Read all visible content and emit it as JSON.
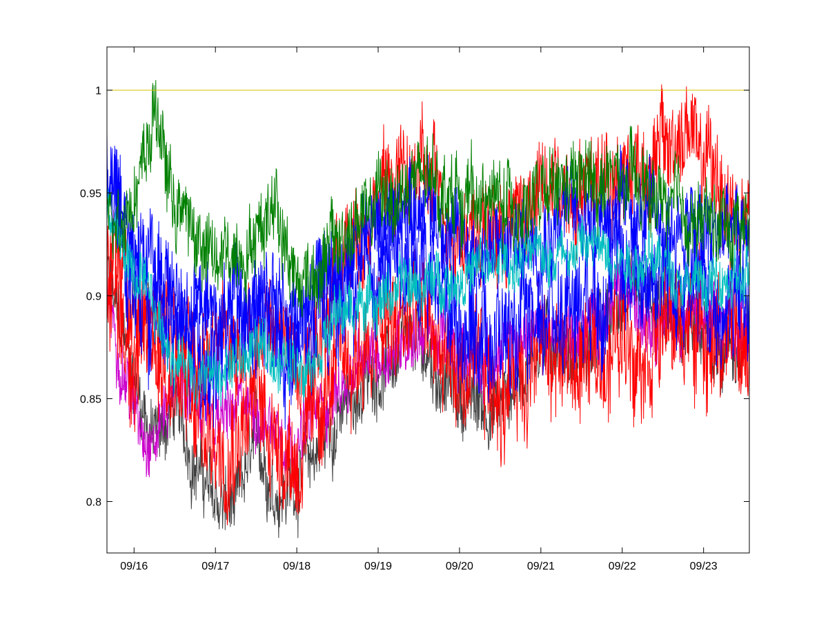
{
  "chart_data": {
    "type": "line",
    "title": "",
    "xlabel": "",
    "ylabel": "",
    "x_tick_labels": [
      "09/16",
      "09/17",
      "09/18",
      "09/19",
      "09/20",
      "09/21",
      "09/22",
      "09/23"
    ],
    "y_tick_labels": [
      "0.8",
      "0.85",
      "0.9",
      "0.95",
      "1"
    ],
    "y_ticks": [
      0.8,
      0.85,
      0.9,
      0.95,
      1.0
    ],
    "xlim": [
      "09/15 16:00",
      "09/23 13:30"
    ],
    "ylim": [
      0.775,
      1.021
    ],
    "grid": false,
    "legend": false,
    "reference_line": {
      "y": 1.0,
      "color": "#d4c200"
    },
    "axis_color": "#000000",
    "note": "dense noisy time series; values below are approximate envelope points read from the figure",
    "series": [
      {
        "color": "#404040",
        "x": [
          "09/15 16:00",
          "09/16 00:00",
          "09/16 06:00",
          "09/16 12:00",
          "09/16 18:00",
          "09/17 00:00",
          "09/17 06:00",
          "09/17 12:00",
          "09/17 18:00",
          "09/18 00:00",
          "09/18 12:00",
          "09/19 00:00",
          "09/19 12:00",
          "09/20 00:00",
          "09/20 12:00",
          "09/21 00:00",
          "09/21 12:00",
          "09/22 00:00",
          "09/22 12:00",
          "09/23 00:00",
          "09/23 13:30"
        ],
        "y": [
          0.91,
          0.86,
          0.83,
          0.845,
          0.82,
          0.8,
          0.795,
          0.83,
          0.805,
          0.81,
          0.84,
          0.865,
          0.875,
          0.85,
          0.845,
          0.88,
          0.87,
          0.895,
          0.89,
          0.875,
          0.875
        ],
        "amp": 0.018
      },
      {
        "color": "#cc00cc",
        "x": [
          "09/15 16:00",
          "09/16 00:00",
          "09/16 06:00",
          "09/16 12:00",
          "09/17 00:00",
          "09/17 12:00",
          "09/18 00:00",
          "09/18 12:00",
          "09/19 00:00",
          "09/19 12:00",
          "09/20 00:00",
          "09/20 12:00",
          "09/21 00:00",
          "09/21 12:00",
          "09/22 00:00",
          "09/22 12:00",
          "09/23 00:00",
          "09/23 13:30"
        ],
        "y": [
          0.9,
          0.845,
          0.83,
          0.86,
          0.84,
          0.845,
          0.83,
          0.855,
          0.87,
          0.885,
          0.87,
          0.87,
          0.885,
          0.88,
          0.9,
          0.89,
          0.885,
          0.885
        ],
        "amp": 0.016
      },
      {
        "color": "#ff0000",
        "x": [
          "09/15 16:00",
          "09/16 00:00",
          "09/16 06:00",
          "09/16 12:00",
          "09/16 18:00",
          "09/17 00:00",
          "09/17 12:00",
          "09/17 18:00",
          "09/18 00:00",
          "09/18 12:00",
          "09/19 00:00",
          "09/19 12:00",
          "09/20 00:00",
          "09/20 12:00",
          "09/21 00:00",
          "09/21 12:00",
          "09/22 00:00",
          "09/22 12:00",
          "09/23 00:00",
          "09/23 13:30"
        ],
        "y": [
          0.91,
          0.87,
          0.88,
          0.86,
          0.84,
          0.83,
          0.85,
          0.835,
          0.82,
          0.865,
          0.88,
          0.89,
          0.86,
          0.855,
          0.875,
          0.865,
          0.88,
          0.885,
          0.885,
          0.87
        ],
        "amp": 0.03
      },
      {
        "color": "#ff0000",
        "x": [
          "09/15 16:00",
          "09/16 00:00",
          "09/16 12:00",
          "09/17 00:00",
          "09/17 12:00",
          "09/18 00:00",
          "09/18 12:00",
          "09/19 00:00",
          "09/19 12:00",
          "09/20 00:00",
          "09/20 12:00",
          "09/21 00:00",
          "09/21 12:00",
          "09/21 20:00",
          "09/22 00:00",
          "09/22 12:00",
          "09/22 20:00",
          "09/23 00:00",
          "09/23 13:30"
        ],
        "y": [
          0.93,
          0.9,
          0.88,
          0.87,
          0.89,
          0.87,
          0.91,
          0.95,
          0.96,
          0.935,
          0.93,
          0.95,
          0.955,
          0.965,
          0.96,
          0.97,
          0.98,
          0.965,
          0.93
        ],
        "amp": 0.025
      },
      {
        "color": "#0000ff",
        "x": [
          "09/15 16:00",
          "09/16 00:00",
          "09/16 12:00",
          "09/17 00:00",
          "09/17 12:00",
          "09/18 00:00",
          "09/18 12:00",
          "09/19 00:00",
          "09/19 12:00",
          "09/20 00:00",
          "09/20 12:00",
          "09/21 00:00",
          "09/21 12:00",
          "09/22 00:00",
          "09/22 12:00",
          "09/23 00:00",
          "09/23 13:30"
        ],
        "y": [
          0.95,
          0.91,
          0.885,
          0.87,
          0.885,
          0.87,
          0.895,
          0.915,
          0.92,
          0.89,
          0.88,
          0.89,
          0.905,
          0.915,
          0.91,
          0.9,
          0.895
        ],
        "amp": 0.03
      },
      {
        "color": "#0000ff",
        "x": [
          "09/15 16:00",
          "09/16 00:00",
          "09/16 12:00",
          "09/17 00:00",
          "09/17 12:00",
          "09/18 00:00",
          "09/18 12:00",
          "09/19 00:00",
          "09/19 12:00",
          "09/20 00:00",
          "09/20 12:00",
          "09/21 00:00",
          "09/21 12:00",
          "09/22 00:00",
          "09/22 12:00",
          "09/23 00:00",
          "09/23 13:30"
        ],
        "y": [
          0.96,
          0.93,
          0.9,
          0.89,
          0.9,
          0.895,
          0.915,
          0.935,
          0.95,
          0.925,
          0.92,
          0.935,
          0.945,
          0.94,
          0.935,
          0.93,
          0.93
        ],
        "amp": 0.022
      },
      {
        "color": "#00bfbf",
        "x": [
          "09/15 16:00",
          "09/16 00:00",
          "09/16 12:00",
          "09/17 00:00",
          "09/17 12:00",
          "09/18 00:00",
          "09/18 12:00",
          "09/19 00:00",
          "09/19 12:00",
          "09/20 00:00",
          "09/20 12:00",
          "09/21 00:00",
          "09/21 12:00",
          "09/22 00:00",
          "09/22 12:00",
          "09/23 00:00",
          "09/23 13:30"
        ],
        "y": [
          0.94,
          0.91,
          0.87,
          0.86,
          0.875,
          0.865,
          0.89,
          0.9,
          0.905,
          0.91,
          0.915,
          0.92,
          0.925,
          0.92,
          0.915,
          0.905,
          0.905
        ],
        "amp": 0.014
      },
      {
        "color": "#008000",
        "x": [
          "09/15 16:00",
          "09/16 00:00",
          "09/16 06:00",
          "09/16 12:00",
          "09/17 00:00",
          "09/17 12:00",
          "09/17 18:00",
          "09/18 00:00",
          "09/18 12:00",
          "09/19 00:00",
          "09/19 12:00",
          "09/20 00:00",
          "09/20 12:00",
          "09/21 00:00",
          "09/21 12:00",
          "09/22 00:00",
          "09/22 12:00",
          "09/23 00:00",
          "09/23 13:30"
        ],
        "y": [
          0.94,
          0.95,
          0.99,
          0.945,
          0.915,
          0.93,
          0.95,
          0.905,
          0.925,
          0.945,
          0.955,
          0.95,
          0.945,
          0.945,
          0.955,
          0.955,
          0.945,
          0.935,
          0.935
        ],
        "amp": 0.02
      }
    ]
  }
}
